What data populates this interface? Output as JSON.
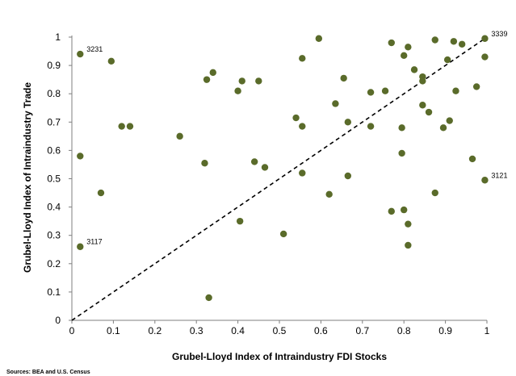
{
  "chart_data": {
    "type": "scatter",
    "title": "",
    "xlabel": "Grubel-Lloyd Index of Intraindustry FDI Stocks",
    "ylabel": "Grubel-Lloyd Index of Intraindustry Trade",
    "xlim": [
      0,
      1
    ],
    "ylim": [
      0,
      1
    ],
    "x_ticks": [
      "0",
      "0.1",
      "0.2",
      "0.3",
      "0.4",
      "0.5",
      "0.6",
      "0.7",
      "0.8",
      "0.9",
      "1"
    ],
    "y_ticks": [
      "0",
      "0.1",
      "0.2",
      "0.3",
      "0.4",
      "0.5",
      "0.6",
      "0.7",
      "0.8",
      "0.9",
      "1"
    ],
    "grid": false,
    "legend": "none",
    "marker_color": "#5a6b2a",
    "reference_line": {
      "style": "dashed",
      "from": [
        0,
        0
      ],
      "to": [
        1,
        1
      ]
    },
    "points": [
      {
        "x": 0.02,
        "y": 0.94
      },
      {
        "x": 0.095,
        "y": 0.915
      },
      {
        "x": 0.02,
        "y": 0.58
      },
      {
        "x": 0.12,
        "y": 0.685
      },
      {
        "x": 0.14,
        "y": 0.685
      },
      {
        "x": 0.07,
        "y": 0.45
      },
      {
        "x": 0.02,
        "y": 0.26
      },
      {
        "x": 0.26,
        "y": 0.65
      },
      {
        "x": 0.32,
        "y": 0.555
      },
      {
        "x": 0.325,
        "y": 0.85
      },
      {
        "x": 0.34,
        "y": 0.875
      },
      {
        "x": 0.33,
        "y": 0.08
      },
      {
        "x": 0.4,
        "y": 0.81
      },
      {
        "x": 0.41,
        "y": 0.845
      },
      {
        "x": 0.45,
        "y": 0.845
      },
      {
        "x": 0.405,
        "y": 0.35
      },
      {
        "x": 0.44,
        "y": 0.56
      },
      {
        "x": 0.465,
        "y": 0.54
      },
      {
        "x": 0.51,
        "y": 0.305
      },
      {
        "x": 0.54,
        "y": 0.715
      },
      {
        "x": 0.555,
        "y": 0.685
      },
      {
        "x": 0.555,
        "y": 0.925
      },
      {
        "x": 0.555,
        "y": 0.52
      },
      {
        "x": 0.595,
        "y": 0.995
      },
      {
        "x": 0.62,
        "y": 0.445
      },
      {
        "x": 0.635,
        "y": 0.765
      },
      {
        "x": 0.655,
        "y": 0.855
      },
      {
        "x": 0.665,
        "y": 0.7
      },
      {
        "x": 0.665,
        "y": 0.51
      },
      {
        "x": 0.72,
        "y": 0.805
      },
      {
        "x": 0.72,
        "y": 0.685
      },
      {
        "x": 0.755,
        "y": 0.81
      },
      {
        "x": 0.77,
        "y": 0.98
      },
      {
        "x": 0.77,
        "y": 0.385
      },
      {
        "x": 0.795,
        "y": 0.68
      },
      {
        "x": 0.8,
        "y": 0.935
      },
      {
        "x": 0.81,
        "y": 0.965
      },
      {
        "x": 0.795,
        "y": 0.59
      },
      {
        "x": 0.8,
        "y": 0.39
      },
      {
        "x": 0.81,
        "y": 0.34
      },
      {
        "x": 0.81,
        "y": 0.265
      },
      {
        "x": 0.825,
        "y": 0.885
      },
      {
        "x": 0.845,
        "y": 0.86
      },
      {
        "x": 0.845,
        "y": 0.845
      },
      {
        "x": 0.845,
        "y": 0.76
      },
      {
        "x": 0.86,
        "y": 0.735
      },
      {
        "x": 0.875,
        "y": 0.99
      },
      {
        "x": 0.875,
        "y": 0.45
      },
      {
        "x": 0.895,
        "y": 0.68
      },
      {
        "x": 0.905,
        "y": 0.92
      },
      {
        "x": 0.91,
        "y": 0.705
      },
      {
        "x": 0.92,
        "y": 0.985
      },
      {
        "x": 0.925,
        "y": 0.81
      },
      {
        "x": 0.94,
        "y": 0.975
      },
      {
        "x": 0.965,
        "y": 0.57
      },
      {
        "x": 0.975,
        "y": 0.825
      },
      {
        "x": 0.995,
        "y": 0.995
      },
      {
        "x": 0.995,
        "y": 0.93
      },
      {
        "x": 0.995,
        "y": 0.495
      }
    ],
    "annotations": [
      {
        "text": "3231",
        "x": 0.02,
        "y": 0.94
      },
      {
        "text": "3117",
        "x": 0.02,
        "y": 0.26
      },
      {
        "text": "3339",
        "x": 0.995,
        "y": 0.995
      },
      {
        "text": "3121",
        "x": 0.995,
        "y": 0.495
      }
    ]
  },
  "source_note": "Sources: BEA and U.S. Census"
}
